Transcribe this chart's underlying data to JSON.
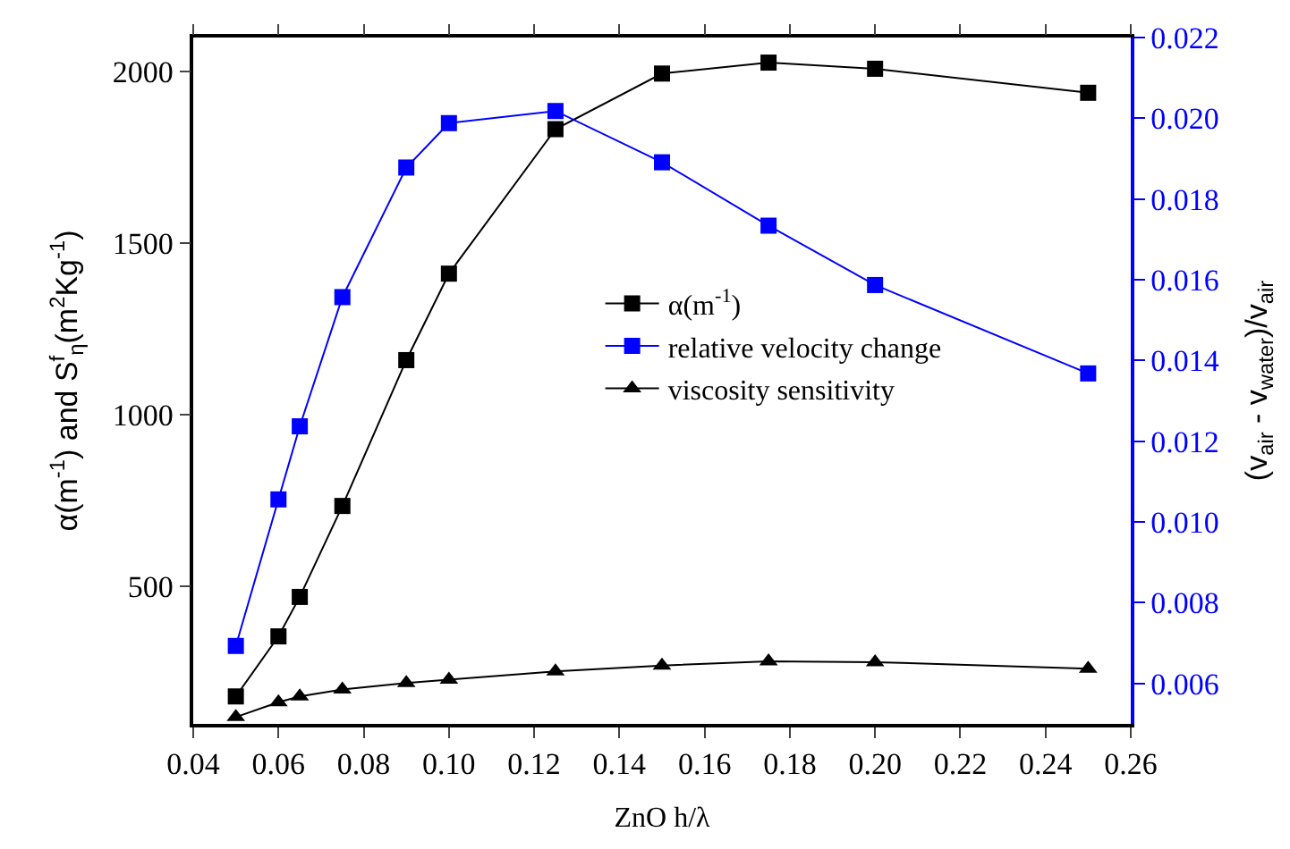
{
  "chart_data": {
    "type": "line",
    "xlabel": "ZnO h/λ",
    "ylabel": "α(m$^{-1}$) and S$^{f}$$_{η}$(m$^{2}$Kg$^{-1}$)",
    "y2label": "(v$_{air}$ - v$_{water}$)/v$_{air}$",
    "x": [
      0.05,
      0.06,
      0.065,
      0.075,
      0.09,
      0.1,
      0.125,
      0.15,
      0.175,
      0.2,
      0.25
    ],
    "series": [
      {
        "name": "α(m$^{-1}$)",
        "color": "#000000",
        "marker": "square",
        "values": [
          180,
          355,
          470,
          735,
          1160,
          1412,
          1833,
          1995,
          2027,
          2009,
          1939
        ]
      },
      {
        "name": "relative velocity change",
        "color": "#0000ff",
        "marker": "square",
        "axis": "y2",
        "values": [
          0.00693,
          0.01056,
          0.01237,
          0.01557,
          0.01878,
          0.01988,
          0.02018,
          0.01891,
          0.01734,
          0.01587,
          0.01368
        ]
      },
      {
        "name": "viscosity sensitivity",
        "color": "#000000",
        "marker": "triangle",
        "values": [
          120,
          163,
          180,
          200,
          219,
          229,
          253,
          270,
          282,
          280,
          261
        ]
      }
    ],
    "xlim": [
      0.04,
      0.26
    ],
    "xticks": [
      0.04,
      0.06,
      0.08,
      {
        "value": 0.1,
        "label": "0.10"
      },
      0.12,
      0.14,
      0.16,
      0.18,
      {
        "value": 0.2,
        "label": "0.20"
      },
      0.22,
      0.24,
      0.26
    ],
    "ylim": [
      100,
      2100
    ],
    "yticks": [
      500,
      1000,
      1500,
      2000
    ],
    "y2lim": [
      0.005,
      0.022
    ],
    "y2ticks": [
      0.006,
      0.008,
      {
        "value": 0.01,
        "label": "0.010"
      },
      0.012,
      0.014,
      0.016,
      0.018,
      {
        "value": 0.02,
        "label": "0.020"
      },
      0.022
    ],
    "legend": "center right",
    "line_style": "solid"
  }
}
